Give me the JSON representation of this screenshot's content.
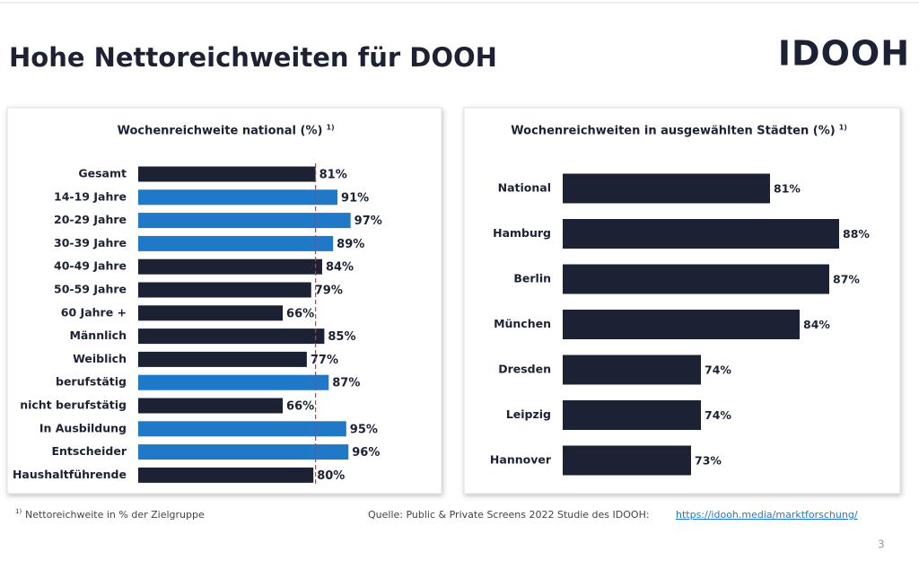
{
  "header": {
    "title": "Hohe Nettoreichweiten für DOOH",
    "logo": "IDOOH"
  },
  "chart_data": [
    {
      "type": "hbar",
      "title": "Wochenreichweite national (%)",
      "title_note": "1)",
      "categories": [
        "Gesamt",
        "14-19 Jahre",
        "20-29 Jahre",
        "30-39 Jahre",
        "40-49 Jahre",
        "50-59 Jahre",
        "60 Jahre +",
        "Männlich",
        "Weiblich",
        "berufstätig",
        "nicht berufstätig",
        "In Ausbildung",
        "Entscheider",
        "Haushaltführende"
      ],
      "values": [
        81,
        91,
        97,
        89,
        84,
        79,
        66,
        85,
        77,
        87,
        66,
        95,
        96,
        80
      ],
      "value_labels": [
        "81%",
        "91%",
        "97%",
        "89%",
        "84%",
        "79%",
        "66%",
        "85%",
        "77%",
        "87%",
        "66%",
        "95%",
        "96%",
        "80%"
      ],
      "colors": [
        "#1c2233",
        "#1f78c8",
        "#1f78c8",
        "#1f78c8",
        "#1c2233",
        "#1c2233",
        "#1c2233",
        "#1c2233",
        "#1c2233",
        "#1f78c8",
        "#1c2233",
        "#1f78c8",
        "#1f78c8",
        "#1c2233"
      ],
      "xlim": [
        0,
        100
      ],
      "reference_line_color": "#d9303a"
    },
    {
      "type": "hbar",
      "title": "Wochenreichweiten in ausgewählten Städten (%)",
      "title_note": "1)",
      "categories": [
        "National",
        "Hamburg",
        "Berlin",
        "München",
        "Dresden",
        "Leipzig",
        "Hannover"
      ],
      "values": [
        81,
        88,
        87,
        84,
        74,
        74,
        73
      ],
      "value_labels": [
        "81%",
        "88%",
        "87%",
        "84%",
        "74%",
        "74%",
        "73%"
      ],
      "color": "#1c2233",
      "xlim": [
        60,
        90
      ]
    }
  ],
  "footer": {
    "footnote_mark": "1)",
    "footnote": "Nettoreichweite in % der Zielgruppe",
    "source": "Quelle: Public & Private Screens 2022 Studie des IDOOH:",
    "link": "https://idooh.media/marktforschung/",
    "page": "3"
  }
}
